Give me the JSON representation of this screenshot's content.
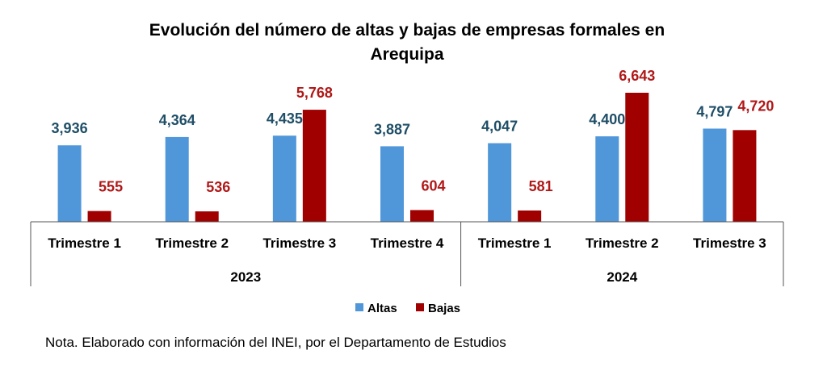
{
  "chart_data": {
    "type": "bar",
    "title_lines": [
      "Evolución del número de altas y bajas de empresas formales en",
      "Arequipa"
    ],
    "categories": [
      "Trimestre 1",
      "Trimestre 2",
      "Trimestre 3",
      "Trimestre 4",
      "Trimestre 1",
      "Trimestre 2",
      "Trimestre 3"
    ],
    "groups": [
      {
        "label": "2023",
        "count": 4
      },
      {
        "label": "2024",
        "count": 3
      }
    ],
    "series": [
      {
        "name": "Altas",
        "color": "#5097d9",
        "label_color": "#1f4e67",
        "values": [
          3936,
          4364,
          4435,
          3887,
          4047,
          4400,
          4797
        ],
        "labels": [
          "3,936",
          "4,364",
          "4,435",
          "3,887",
          "4,047",
          "4,400",
          "4,797"
        ]
      },
      {
        "name": "Bajas",
        "color": "#a00000",
        "label_color": "#b01818",
        "values": [
          555,
          536,
          5768,
          604,
          581,
          6643,
          4720
        ],
        "labels": [
          "555",
          "536",
          "5,768",
          "604",
          "581",
          "6,643",
          "4,720"
        ]
      }
    ],
    "xlabel": "",
    "ylabel": "",
    "ylim": [
      0,
      6643
    ],
    "grid": false,
    "legend": "bottom"
  },
  "note": "Nota. Elaborado con información del INEI, por el Departamento de Estudios"
}
